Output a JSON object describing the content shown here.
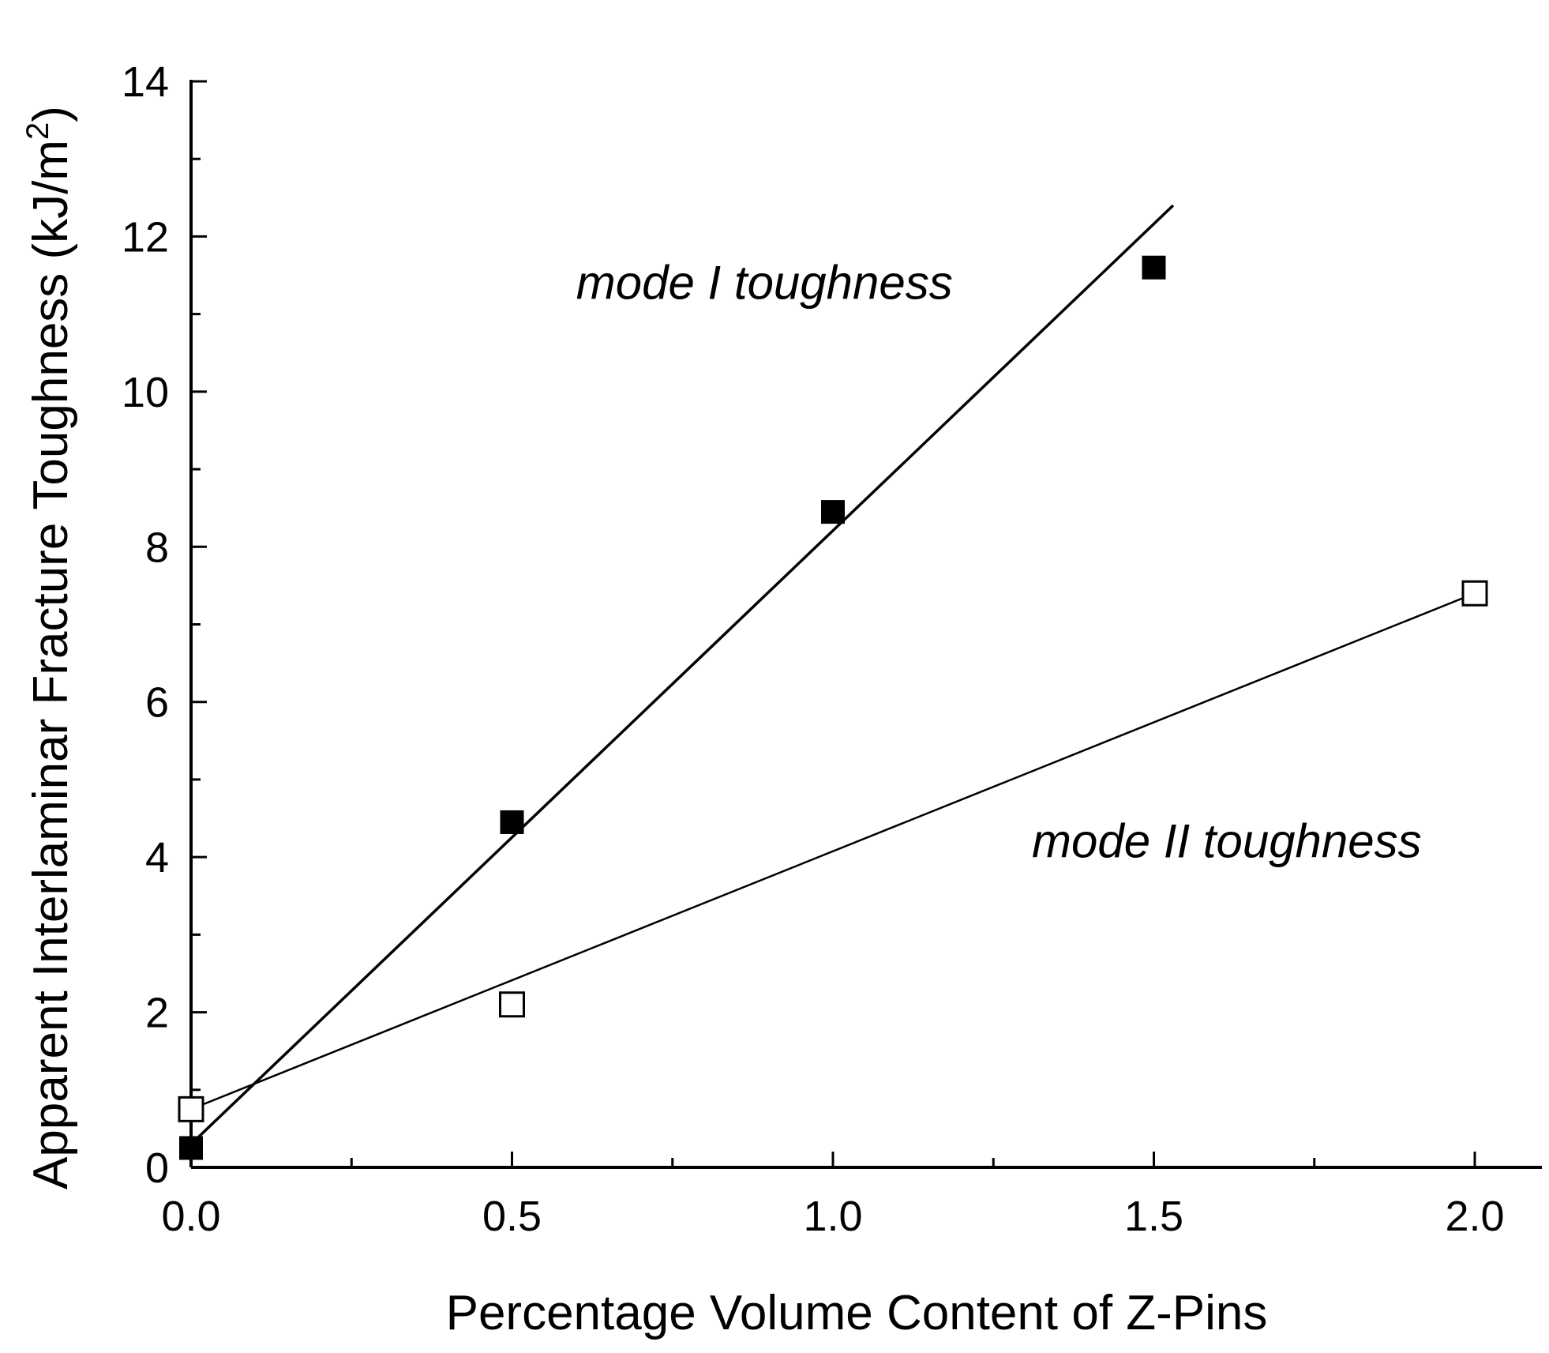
{
  "chart_data": {
    "type": "scatter",
    "title": "",
    "xlabel": "Percentage Volume Content of Z-Pins",
    "ylabel": "Apparent Interlaminar Fracture Toughness (kJ/m",
    "ylabel_superscript": "2",
    "ylabel_close": ")",
    "xlim": [
      0,
      2.1
    ],
    "ylim": [
      0,
      14
    ],
    "x_ticks": [
      0.0,
      0.5,
      1.0,
      1.5,
      2.0
    ],
    "x_tick_labels": [
      "0.0",
      "0.5",
      "1.0",
      "1.5",
      "2.0"
    ],
    "x_minor_ticks": [
      0.25,
      0.75,
      1.25,
      1.75
    ],
    "y_ticks": [
      0,
      2,
      4,
      6,
      8,
      10,
      12,
      14
    ],
    "y_tick_labels": [
      "0",
      "2",
      "4",
      "6",
      "8",
      "10",
      "12",
      "14"
    ],
    "y_minor_ticks": [
      1,
      3,
      5,
      7,
      9,
      11,
      13
    ],
    "grid": false,
    "legend": "none",
    "series": [
      {
        "marker": "filled-square",
        "color": "#000000",
        "x": [
          0.0,
          0.5,
          1.0,
          1.5
        ],
        "y": [
          0.25,
          4.45,
          8.45,
          11.6
        ],
        "fit_line": {
          "x": [
            0.0,
            1.53
          ],
          "y": [
            0.3,
            12.4
          ]
        }
      },
      {
        "marker": "open-square",
        "color": "#000000",
        "x": [
          0.0,
          0.5,
          2.0
        ],
        "y": [
          0.75,
          2.1,
          7.4
        ],
        "fit_line": {
          "x": [
            0.0,
            2.0
          ],
          "y": [
            0.75,
            7.4
          ]
        }
      }
    ],
    "annotations": [
      {
        "text": "mode I toughness",
        "x": 0.6,
        "y": 11.4
      },
      {
        "text": "mode II toughness",
        "x": 1.31,
        "y": 4.2
      }
    ]
  }
}
